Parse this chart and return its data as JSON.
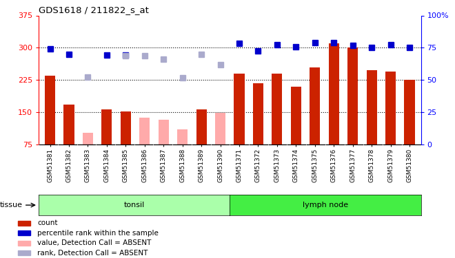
{
  "title": "GDS1618 / 211822_s_at",
  "samples": [
    "GSM51381",
    "GSM51382",
    "GSM51383",
    "GSM51384",
    "GSM51385",
    "GSM51386",
    "GSM51387",
    "GSM51388",
    "GSM51389",
    "GSM51390",
    "GSM51371",
    "GSM51372",
    "GSM51373",
    "GSM51374",
    "GSM51375",
    "GSM51376",
    "GSM51377",
    "GSM51378",
    "GSM51379",
    "GSM51380"
  ],
  "bar_values": [
    235,
    168,
    null,
    157,
    152,
    null,
    null,
    null,
    157,
    null,
    240,
    217,
    240,
    210,
    255,
    310,
    300,
    248,
    244,
    226
  ],
  "bar_absent": [
    null,
    null,
    103,
    null,
    null,
    138,
    132,
    110,
    null,
    148,
    null,
    null,
    null,
    null,
    null,
    null,
    null,
    null,
    null,
    null
  ],
  "rank_present": [
    298,
    284,
    null,
    283,
    283,
    null,
    null,
    null,
    null,
    null,
    310,
    292,
    307,
    302,
    312,
    312,
    305,
    301,
    307,
    300
  ],
  "rank_absent": [
    null,
    null,
    232,
    null,
    282,
    282,
    273,
    231,
    285,
    261,
    null,
    null,
    null,
    null,
    null,
    null,
    null,
    null,
    null,
    null
  ],
  "bar_color_present": "#cc2200",
  "bar_color_absent": "#ffaaaa",
  "rank_color_present": "#0000cc",
  "rank_color_absent": "#aaaacc",
  "ylim_left": [
    75,
    375
  ],
  "ylim_right": [
    0,
    100
  ],
  "yticks_left": [
    75,
    150,
    225,
    300,
    375
  ],
  "yticks_right": [
    0,
    25,
    50,
    75,
    100
  ],
  "hlines": [
    150,
    225,
    300
  ],
  "tonsil_label": "tonsil",
  "lymphnode_label": "lymph node",
  "tissue_label": "tissue",
  "legend_items": [
    {
      "label": "count",
      "color": "#cc2200"
    },
    {
      "label": "percentile rank within the sample",
      "color": "#0000cc"
    },
    {
      "label": "value, Detection Call = ABSENT",
      "color": "#ffaaaa"
    },
    {
      "label": "rank, Detection Call = ABSENT",
      "color": "#aaaacc"
    }
  ],
  "bar_width": 0.55,
  "rank_marker_size": 6
}
